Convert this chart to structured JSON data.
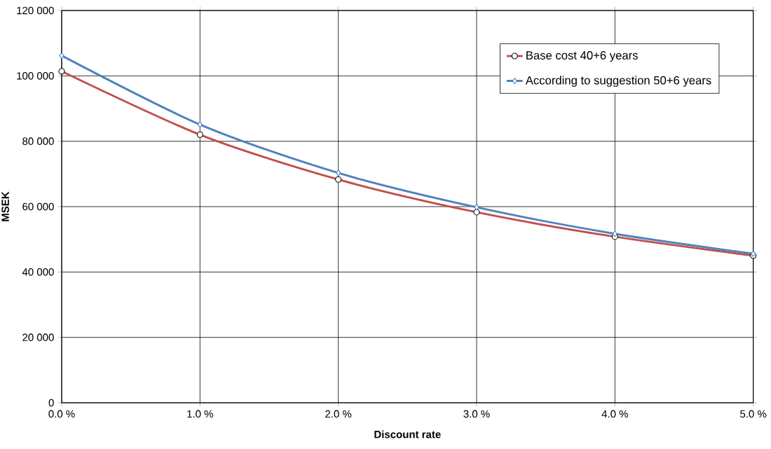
{
  "chart_data": {
    "type": "line",
    "xlabel": "Discount rate",
    "ylabel": "MSEK",
    "x": [
      0,
      1,
      2,
      3,
      4,
      5
    ],
    "series": [
      {
        "name": "Base cost 40+6 years",
        "color": "#c0504d",
        "marker": "circle",
        "values": [
          101400,
          82000,
          68300,
          58300,
          50800,
          45000
        ]
      },
      {
        "name": "According to suggestion 50+6 years",
        "color": "#4f81bd",
        "marker": "diamond",
        "values": [
          106200,
          85100,
          70300,
          59800,
          51700,
          45600
        ]
      }
    ],
    "xlim": [
      0,
      5
    ],
    "xticks": [
      {
        "value": 0,
        "label": "0.0 %"
      },
      {
        "value": 1,
        "label": "1.0 %"
      },
      {
        "value": 2,
        "label": "2.0 %"
      },
      {
        "value": 3,
        "label": "3.0 %"
      },
      {
        "value": 4,
        "label": "4.0 %"
      },
      {
        "value": 5,
        "label": "5.0 %"
      }
    ],
    "ylim": [
      0,
      120000
    ],
    "yticks": [
      0,
      {
        "value": 20000,
        "label": "20 000"
      },
      {
        "value": 40000,
        "label": "40 000"
      },
      {
        "value": 60000,
        "label": "60 000"
      },
      {
        "value": 80000,
        "label": "80 000"
      },
      {
        "value": 100000,
        "label": "100 000"
      },
      {
        "value": 120000,
        "label": "120 000"
      }
    ],
    "grid": true,
    "legend": "top right",
    "line_style": "solid"
  }
}
